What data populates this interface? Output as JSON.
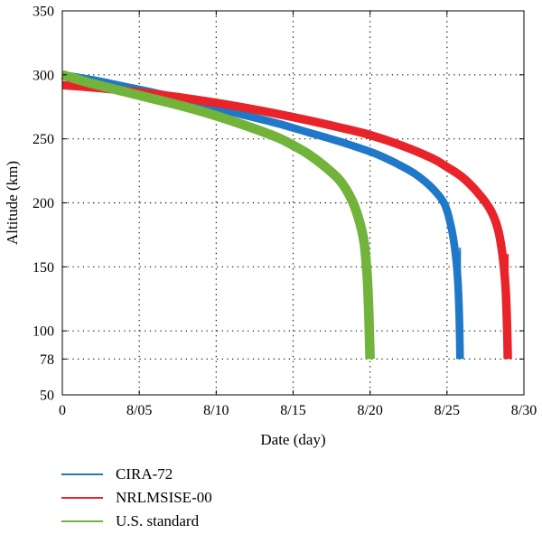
{
  "chart_data": {
    "type": "line",
    "xlabel": "Date (day)",
    "ylabel": "Altitude (km)",
    "xlim": [
      0,
      30
    ],
    "ylim": [
      50,
      350
    ],
    "x_ticks": [
      {
        "value": 0,
        "label": "0"
      },
      {
        "value": 5,
        "label": "8/05"
      },
      {
        "value": 10,
        "label": "8/10"
      },
      {
        "value": 15,
        "label": "8/15"
      },
      {
        "value": 20,
        "label": "8/20"
      },
      {
        "value": 25,
        "label": "8/25"
      },
      {
        "value": 30,
        "label": "8/30"
      }
    ],
    "y_ticks": [
      {
        "value": 50,
        "label": "50"
      },
      {
        "value": 78,
        "label": "78"
      },
      {
        "value": 100,
        "label": "100"
      },
      {
        "value": 150,
        "label": "150"
      },
      {
        "value": 200,
        "label": "200"
      },
      {
        "value": 250,
        "label": "250"
      },
      {
        "value": 300,
        "label": "300"
      },
      {
        "value": 350,
        "label": "350"
      }
    ],
    "grid": true,
    "legend_position": "below",
    "series": [
      {
        "name": "CIRA-72",
        "color": "#1f78c8",
        "x": [
          0,
          2,
          4,
          6,
          8,
          10,
          12,
          14,
          16,
          18,
          20,
          21,
          22,
          23,
          24,
          24.8,
          25.2,
          25.5,
          25.7,
          25.8,
          25.85
        ],
        "y": [
          300,
          296,
          291,
          286,
          280,
          274,
          268,
          262,
          255,
          248,
          240,
          235,
          229,
          222,
          212,
          200,
          185,
          165,
          140,
          110,
          78
        ],
        "band": 2.5
      },
      {
        "name": "NRLMSISE-00",
        "color": "#e8242a",
        "x": [
          0,
          3,
          6,
          9,
          12,
          15,
          18,
          20,
          22,
          24,
          25,
          26,
          27,
          27.8,
          28.3,
          28.6,
          28.8,
          28.9,
          28.95
        ],
        "y": [
          292,
          289,
          285,
          280,
          274,
          267,
          259,
          253,
          245,
          235,
          228,
          220,
          208,
          195,
          180,
          160,
          135,
          105,
          78
        ],
        "band": 2.8
      },
      {
        "name": "U.S. standard",
        "color": "#72b43b",
        "x": [
          0,
          2,
          4,
          6,
          8,
          10,
          12,
          14,
          15,
          16,
          17,
          18,
          18.7,
          19.2,
          19.6,
          19.8,
          19.9,
          19.95,
          20
        ],
        "y": [
          300,
          293,
          287,
          281,
          275,
          268,
          260,
          251,
          245,
          238,
          229,
          218,
          205,
          190,
          170,
          145,
          120,
          100,
          78
        ],
        "band": 3.2
      }
    ]
  }
}
